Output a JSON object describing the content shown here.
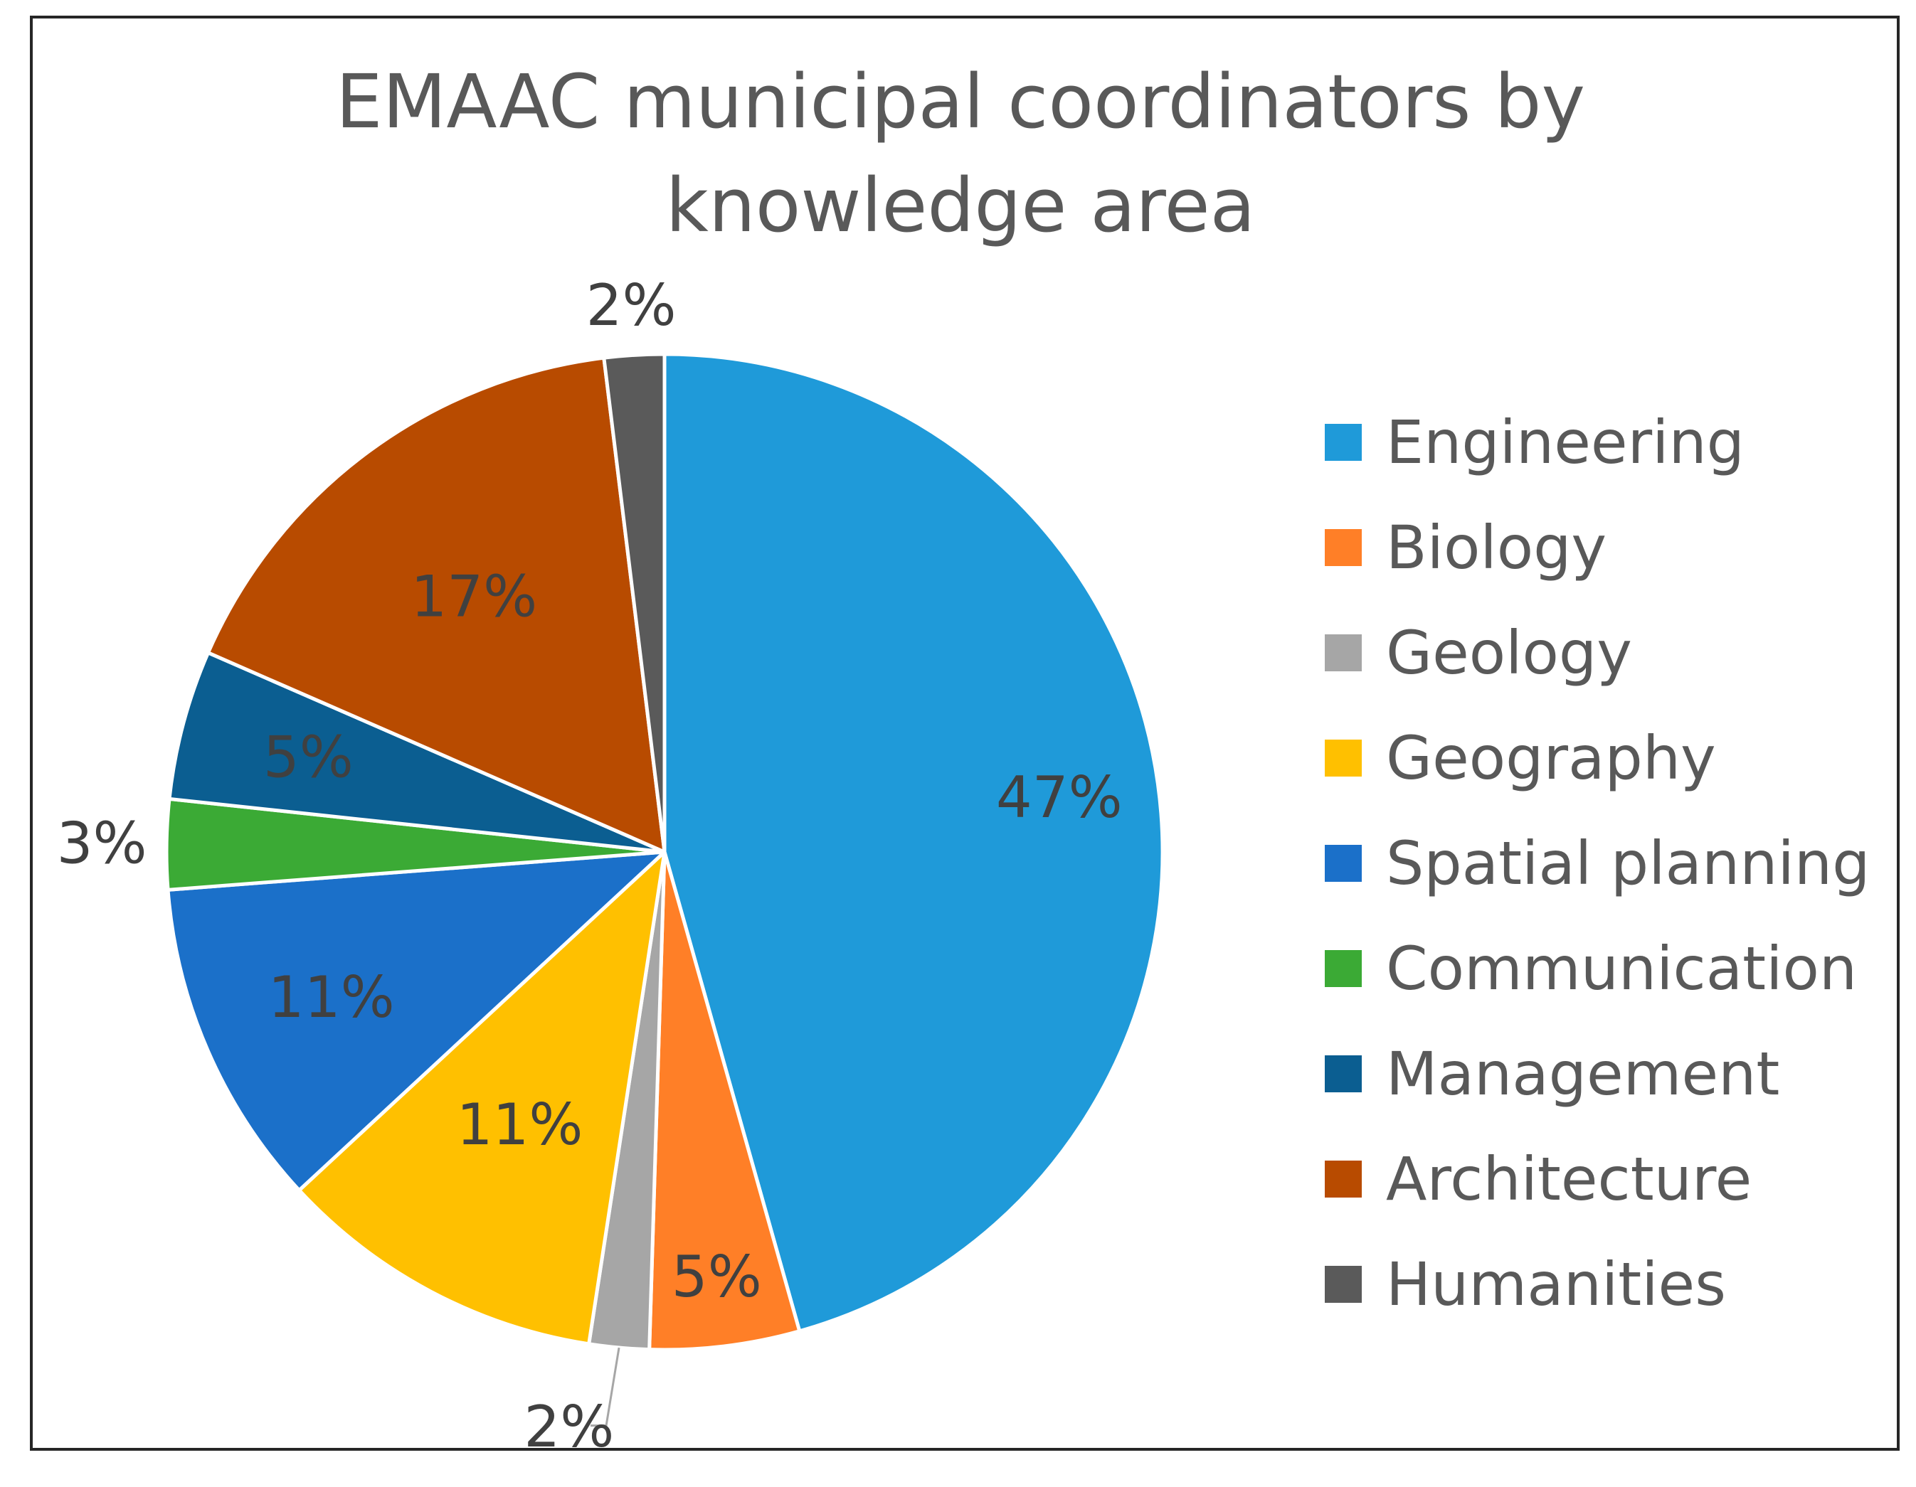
{
  "chart_data": {
    "type": "pie",
    "title_lines": [
      "EMAAC municipal coordinators by",
      "knowledge area"
    ],
    "categories": [
      "Engineering",
      "Biology",
      "Geology",
      "Geography",
      "Spatial planning",
      "Communication",
      "Management",
      "Architecture",
      "Humanities"
    ],
    "values": [
      47,
      5,
      2,
      11,
      11,
      3,
      5,
      17,
      2
    ],
    "data_labels": [
      "47%",
      "5%",
      "2%",
      "11%",
      "11%",
      "3%",
      "5%",
      "17%",
      "2%"
    ],
    "colors": [
      "#1F9AD9",
      "#FF7F27",
      "#A6A6A6",
      "#FFC000",
      "#1B70C9",
      "#3BAA35",
      "#0B5E91",
      "#B84B00",
      "#5A5A5A"
    ],
    "legend_position": "right",
    "start": "top",
    "direction": "clockwise"
  }
}
